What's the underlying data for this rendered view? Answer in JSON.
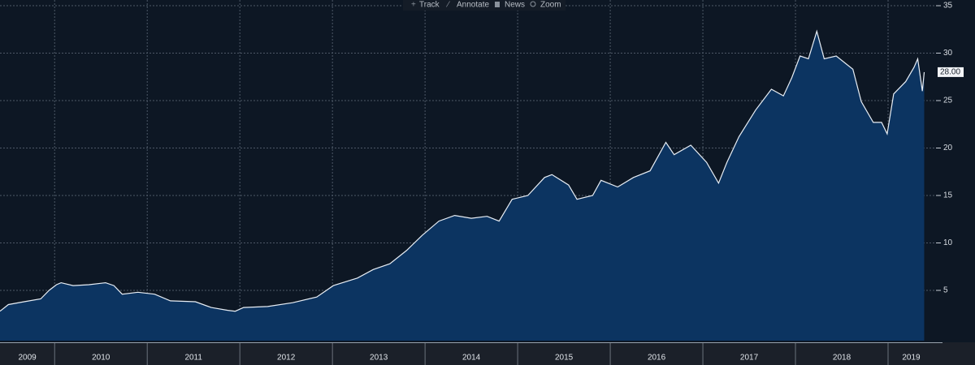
{
  "toolbar": [
    "Track",
    "Annotate",
    "News",
    "Zoom"
  ],
  "chart_data": {
    "type": "area",
    "x": [
      2009.41,
      2009.5,
      2009.67,
      2009.85,
      2009.94,
      2010.02,
      2010.07,
      2010.2,
      2010.37,
      2010.55,
      2010.64,
      2010.73,
      2010.9,
      2011.08,
      2011.25,
      2011.52,
      2011.69,
      2011.87,
      2011.95,
      2012.04,
      2012.3,
      2012.57,
      2012.83,
      2013.01,
      2013.27,
      2013.44,
      2013.62,
      2013.8,
      2013.97,
      2014.15,
      2014.32,
      2014.5,
      2014.67,
      2014.8,
      2014.94,
      2015.11,
      2015.29,
      2015.37,
      2015.55,
      2015.64,
      2015.81,
      2015.9,
      2016.08,
      2016.25,
      2016.43,
      2016.6,
      2016.69,
      2016.87,
      2017.04,
      2017.17,
      2017.26,
      2017.39,
      2017.57,
      2017.74,
      2017.87,
      2017.96,
      2018.05,
      2018.14,
      2018.23,
      2018.31,
      2018.44,
      2018.62,
      2018.71,
      2018.84,
      2018.93,
      2018.99,
      2019.06,
      2019.19,
      2019.28,
      2019.32,
      2019.37,
      2019.39
    ],
    "values": [
      2.8,
      3.5,
      3.8,
      4.1,
      5.0,
      5.6,
      5.8,
      5.5,
      5.6,
      5.8,
      5.5,
      4.6,
      4.8,
      4.6,
      3.9,
      3.8,
      3.2,
      2.9,
      2.8,
      3.2,
      3.3,
      3.7,
      4.3,
      5.5,
      6.3,
      7.2,
      7.8,
      9.2,
      10.8,
      12.3,
      12.9,
      12.6,
      12.8,
      12.3,
      14.6,
      15.0,
      16.9,
      17.2,
      16.1,
      14.6,
      15.0,
      16.6,
      15.9,
      16.9,
      17.6,
      20.6,
      19.3,
      20.3,
      18.5,
      16.3,
      18.5,
      21.2,
      24.0,
      26.2,
      25.5,
      27.4,
      29.7,
      29.4,
      32.3,
      29.4,
      29.7,
      28.3,
      24.9,
      22.7,
      22.7,
      21.5,
      25.7,
      27.0,
      28.5,
      29.4,
      26.0,
      28.0
    ],
    "color": "#0c3461",
    "line_color": "#e8eef5",
    "xlim": [
      2009.41,
      2019.5
    ],
    "xticks": [
      2009,
      2010,
      2011,
      2012,
      2013,
      2014,
      2015,
      2016,
      2017,
      2018,
      2019
    ],
    "ylim": [
      -0.3,
      35.6
    ],
    "yticks": [
      5,
      10,
      15,
      20,
      25,
      30,
      35
    ],
    "grid": true,
    "last_price": {
      "value": 28,
      "label": "28.00"
    }
  }
}
